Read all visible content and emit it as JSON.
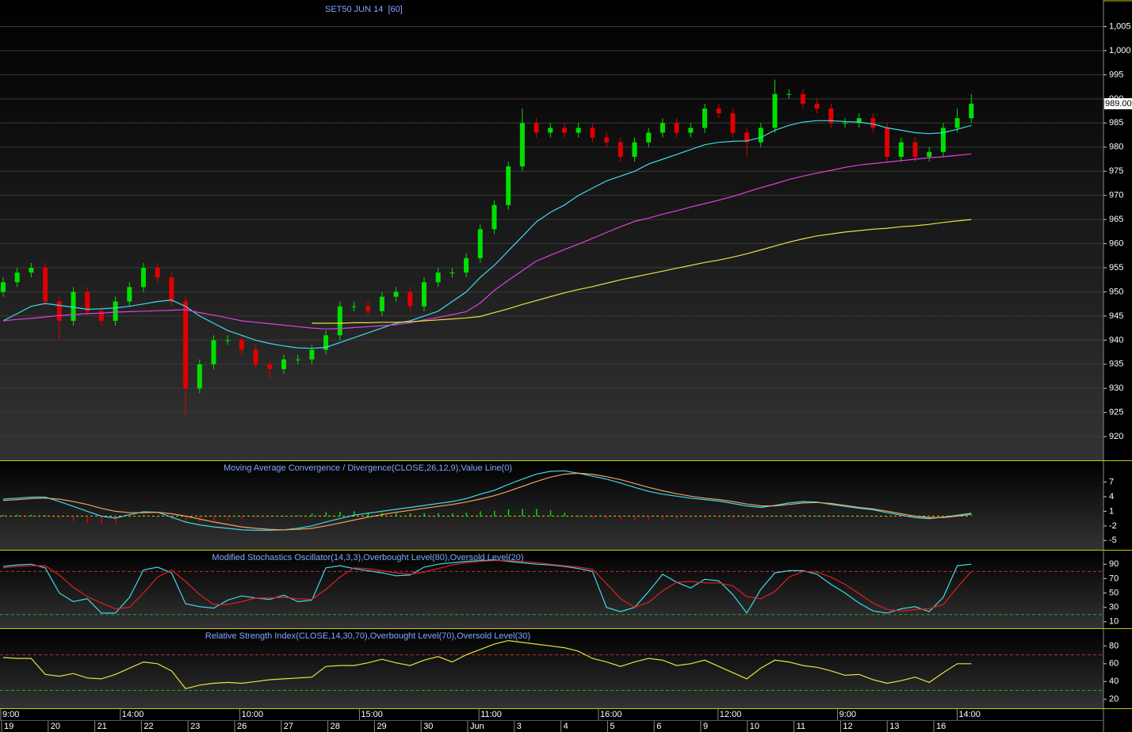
{
  "chart_data": [
    {
      "type": "candlestick",
      "title": "SET50 JUN 14  [60]",
      "ylim": [
        915.1,
        1010.5
      ],
      "yticks": [
        920,
        925,
        930,
        935,
        940,
        945,
        950,
        955,
        960,
        965,
        970,
        975,
        980,
        985,
        990,
        995,
        {
          "value": 1000,
          "label": "1,000"
        },
        {
          "value": 1005,
          "label": "1,005"
        }
      ],
      "last_price": {
        "value": 989,
        "label": "989.00"
      },
      "up_color": "#00e000",
      "down_color": "#e00000",
      "grid": true,
      "open": [
        950,
        952,
        954,
        955,
        948,
        944,
        950,
        946,
        944,
        948,
        951,
        955,
        953,
        948,
        930,
        935,
        940,
        940,
        938,
        935,
        934,
        936,
        936,
        938,
        941,
        947,
        947,
        946,
        949,
        950,
        947,
        952,
        954,
        954,
        957,
        963,
        968,
        976,
        985,
        983,
        984,
        983,
        984,
        982,
        981,
        978,
        981,
        983,
        985,
        983,
        984,
        988,
        987,
        983,
        981,
        984,
        991,
        991,
        989,
        988,
        985,
        985,
        986,
        984,
        978,
        981,
        978,
        979,
        984,
        986
      ],
      "high": [
        953,
        955,
        956,
        956,
        949,
        951,
        951,
        947,
        949,
        952,
        956,
        956,
        954,
        949,
        936,
        941,
        941,
        941,
        939,
        936,
        937,
        937,
        939,
        942,
        948,
        948,
        948,
        950,
        951,
        951,
        953,
        955,
        955,
        958,
        964,
        969,
        977,
        988,
        986,
        985,
        985,
        985,
        985,
        983,
        982,
        982,
        984,
        986,
        986,
        985,
        989,
        989,
        988,
        984,
        985,
        994,
        992,
        992,
        990,
        989,
        986,
        987,
        987,
        985,
        982,
        982,
        980,
        985,
        988,
        991
      ],
      "low": [
        949,
        951,
        953,
        947,
        940,
        943,
        945,
        943,
        943,
        947,
        950,
        952,
        947,
        924,
        929,
        934,
        939,
        937,
        934,
        932,
        933,
        935,
        935,
        937,
        940,
        946,
        945,
        945,
        948,
        946,
        946,
        951,
        953,
        953,
        956,
        962,
        967,
        975,
        982,
        982,
        982,
        982,
        981,
        980,
        977,
        977,
        980,
        982,
        982,
        982,
        983,
        986,
        982,
        978,
        980,
        983,
        990,
        988,
        987,
        984,
        984,
        984,
        983,
        977,
        977,
        977,
        977,
        978,
        983,
        985
      ],
      "close": [
        952,
        954,
        955,
        948,
        944,
        950,
        946,
        944,
        948,
        951,
        955,
        953,
        948,
        930,
        935,
        940,
        940,
        938,
        935,
        934,
        936,
        936,
        938,
        941,
        947,
        947,
        946,
        949,
        950,
        947,
        952,
        954,
        954,
        957,
        963,
        968,
        976,
        985,
        983,
        984,
        983,
        984,
        982,
        981,
        978,
        981,
        983,
        985,
        983,
        984,
        988,
        987,
        983,
        981,
        984,
        991,
        991,
        989,
        988,
        985,
        985,
        986,
        984,
        978,
        981,
        978,
        979,
        984,
        986,
        989
      ],
      "series": [
        {
          "color": "#40d8e8",
          "values": [
            944,
            945.5,
            947,
            947.6,
            947.2,
            946.8,
            946.4,
            946.5,
            946.7,
            947,
            947.5,
            948,
            948.3,
            947,
            945,
            943.5,
            942,
            941,
            940,
            939.3,
            938.8,
            938.4,
            938.3,
            938.5,
            939.5,
            940.5,
            941.5,
            942.5,
            943.5,
            944,
            945,
            946,
            948,
            950,
            953,
            955.5,
            958.5,
            961.5,
            964.5,
            966.5,
            968,
            970,
            971.5,
            973,
            974,
            975,
            976.5,
            977.5,
            978.5,
            979.5,
            980.5,
            981,
            981.2,
            981.3,
            982,
            983.5,
            984.5,
            985.2,
            985.5,
            985.5,
            985.3,
            985.2,
            984.8,
            984,
            983.5,
            983,
            982.8,
            983,
            983.7,
            984.5
          ]
        },
        {
          "color": "#e040e0",
          "values": [
            944,
            944.3,
            944.5,
            944.8,
            945.1,
            945.3,
            945.5,
            945.6,
            945.8,
            945.9,
            946,
            946.1,
            946.2,
            946.3,
            945.7,
            945.2,
            944.6,
            944,
            943.7,
            943.4,
            943.1,
            942.8,
            942.5,
            942.3,
            942.4,
            942.6,
            942.8,
            943,
            943.2,
            943.6,
            944.2,
            944.7,
            945.3,
            945.9,
            947.7,
            950.3,
            952.4,
            954.4,
            956.4,
            957.6,
            958.8,
            959.9,
            961.1,
            962.3,
            963.5,
            964.6,
            965.3,
            966.1,
            966.8,
            967.6,
            968.3,
            969,
            969.8,
            970.7,
            971.6,
            972.4,
            973.3,
            974,
            974.6,
            975.2,
            975.8,
            976.3,
            976.6,
            976.9,
            977.2,
            977.5,
            977.8,
            978,
            978.3,
            978.6
          ]
        },
        {
          "color": "#e8e040",
          "values": [
            null,
            null,
            null,
            null,
            null,
            null,
            null,
            null,
            null,
            null,
            null,
            null,
            null,
            null,
            null,
            null,
            null,
            null,
            null,
            null,
            null,
            null,
            943.5,
            943.5,
            943.5,
            943.6,
            943.6,
            943.7,
            943.7,
            943.8,
            944,
            944.2,
            944.4,
            944.6,
            944.9,
            945.7,
            946.5,
            947.4,
            948.2,
            949,
            949.8,
            950.5,
            951.1,
            951.8,
            952.5,
            953.1,
            953.7,
            954.3,
            954.9,
            955.5,
            956.1,
            956.6,
            957.2,
            957.9,
            958.7,
            959.5,
            960.3,
            961,
            961.6,
            962,
            962.4,
            962.7,
            963,
            963.2,
            963.5,
            963.7,
            964,
            964.4,
            964.7,
            965
          ]
        }
      ]
    },
    {
      "type": "macd",
      "title": "Moving Average Convergence / Divergence(CLOSE,26,12,9),Value Line(0)",
      "ylim": [
        -6.9,
        11.3
      ],
      "yticks": [
        7,
        4,
        1,
        -2,
        -5
      ],
      "up_color": "#00e000",
      "down_color": "#e00000",
      "series": [
        {
          "color": "#40d8e8",
          "values": [
            3.5,
            3.7,
            3.9,
            3.9,
            3,
            2,
            1,
            0,
            -0.4,
            0.3,
            0.9,
            0.8,
            -0.2,
            -1.2,
            -1.8,
            -2.2,
            -2.5,
            -2.8,
            -2.9,
            -2.9,
            -2.8,
            -2.5,
            -2,
            -1.2,
            -0.5,
            0.2,
            0.6,
            1,
            1.4,
            1.8,
            2.2,
            2.6,
            3,
            3.6,
            4.5,
            5.3,
            6.5,
            7.6,
            8.6,
            9.2,
            9.3,
            8.8,
            8.2,
            7.6,
            6.8,
            5.9,
            5.1,
            4.5,
            4.1,
            3.7,
            3.4,
            3.1,
            2.6,
            2.1,
            1.8,
            2.2,
            2.7,
            3,
            2.9,
            2.4,
            2,
            1.6,
            1.3,
            0.7,
            0.2,
            -0.3,
            -0.5,
            -0.2,
            0.2,
            0.6
          ]
        },
        {
          "color": "#f0a060",
          "values": [
            3.2,
            3.4,
            3.6,
            3.7,
            3.5,
            3,
            2.4,
            1.6,
            1,
            0.7,
            0.7,
            0.8,
            0.5,
            0,
            -0.6,
            -1.2,
            -1.7,
            -2.2,
            -2.5,
            -2.7,
            -2.8,
            -2.7,
            -2.5,
            -2,
            -1.4,
            -0.8,
            -0.2,
            0.3,
            0.8,
            1.2,
            1.6,
            2,
            2.4,
            2.9,
            3.5,
            4.2,
            5.1,
            6.1,
            7.1,
            8,
            8.6,
            8.8,
            8.6,
            8.1,
            7.5,
            6.7,
            5.9,
            5.2,
            4.6,
            4.1,
            3.7,
            3.4,
            3,
            2.5,
            2.1,
            2.1,
            2.4,
            2.7,
            2.8,
            2.6,
            2.2,
            1.8,
            1.5,
            1,
            0.5,
            0,
            -0.3,
            -0.3,
            0,
            0.4
          ]
        }
      ],
      "histogram": [
        0.3,
        0.3,
        0.3,
        0.2,
        -0.5,
        -1,
        -1.4,
        -1.6,
        -1.4,
        -0.4,
        0.2,
        0,
        -0.7,
        -1.2,
        -1.2,
        -1,
        -0.8,
        -0.6,
        -0.4,
        -0.2,
        0,
        0.2,
        0.5,
        0.8,
        0.9,
        1,
        0.8,
        0.7,
        0.6,
        0.6,
        0.6,
        0.6,
        0.6,
        0.7,
        1,
        1.1,
        1.4,
        1.5,
        1.5,
        1.2,
        0.7,
        0,
        -0.4,
        -0.5,
        -0.7,
        -0.8,
        -0.8,
        -0.7,
        -0.5,
        -0.4,
        -0.3,
        -0.3,
        -0.4,
        -0.4,
        -0.3,
        0.1,
        0.3,
        0.3,
        0.1,
        -0.2,
        -0.2,
        -0.2,
        -0.2,
        -0.3,
        -0.3,
        -0.3,
        -0.2,
        0.1,
        0.2,
        0.2
      ],
      "value_line": 0
    },
    {
      "type": "stochastic",
      "title": "Modified Stochastics Oscillator(14,3,3),Overbought Level(80),Oversold Level(20)",
      "ylim": [
        1,
        109
      ],
      "yticks": [
        90,
        70,
        50,
        30,
        10
      ],
      "levels": [
        {
          "value": 80,
          "color": "#c03030"
        },
        {
          "value": 20,
          "color": "#30a030"
        }
      ],
      "series": [
        {
          "color": "#40d8e8",
          "values": [
            87,
            89,
            90,
            85,
            50,
            38,
            42,
            22,
            22,
            44,
            82,
            86,
            78,
            35,
            31,
            29,
            40,
            46,
            43,
            41,
            47,
            38,
            40,
            85,
            88,
            84,
            81,
            78,
            74,
            75,
            86,
            90,
            92,
            94,
            95,
            96,
            94,
            92,
            90,
            89,
            87,
            84,
            80,
            30,
            24,
            30,
            52,
            76,
            65,
            57,
            69,
            67,
            48,
            22,
            55,
            78,
            81,
            81,
            76,
            62,
            50,
            36,
            25,
            22,
            28,
            31,
            24,
            44,
            88,
            90
          ]
        },
        {
          "color": "#e02020",
          "values": [
            85,
            87,
            88,
            88,
            75,
            58,
            45,
            36,
            28,
            30,
            50,
            72,
            82,
            66,
            48,
            34,
            34,
            38,
            43,
            43,
            44,
            42,
            41,
            55,
            72,
            85,
            84,
            81,
            78,
            76,
            79,
            84,
            89,
            92,
            94,
            95,
            95,
            94,
            92,
            90,
            88,
            86,
            83,
            63,
            42,
            30,
            37,
            53,
            65,
            66,
            64,
            64,
            60,
            45,
            42,
            52,
            72,
            80,
            79,
            72,
            62,
            49,
            36,
            27,
            25,
            27,
            28,
            34,
            58,
            80
          ]
        }
      ]
    },
    {
      "type": "rsi",
      "title": "Relative Strength Index(CLOSE,14,30,70),Overbought Level(70),Oversold Level(30)",
      "ylim": [
        10,
        99
      ],
      "yticks": [
        80,
        60,
        40,
        20
      ],
      "levels": [
        {
          "value": 70,
          "color": "#c03030"
        },
        {
          "value": 30,
          "color": "#30a030"
        }
      ],
      "series": [
        {
          "color": "#e8e040",
          "values": [
            67,
            66,
            66,
            48,
            46,
            49,
            44,
            43,
            48,
            55,
            62,
            60,
            52,
            32,
            36,
            38,
            39,
            38,
            40,
            42,
            43,
            44,
            45,
            57,
            58,
            58,
            61,
            65,
            61,
            58,
            64,
            68,
            62,
            70,
            76,
            82,
            86,
            84,
            82,
            80,
            78,
            74,
            66,
            62,
            57,
            62,
            66,
            64,
            58,
            60,
            64,
            57,
            50,
            43,
            55,
            64,
            62,
            58,
            56,
            52,
            47,
            48,
            42,
            38,
            41,
            45,
            39,
            50,
            60,
            60
          ]
        }
      ]
    }
  ],
  "x_axis": {
    "time_labels": [
      "9:00",
      "14:00",
      "10:00",
      "15:00",
      "11:00",
      "16:00",
      "12:00",
      "9:00",
      "14:00"
    ],
    "date_labels": [
      "19",
      "20",
      "21",
      "22",
      "23",
      "26",
      "27",
      "28",
      "29",
      "30",
      "Jun",
      "3",
      "4",
      "5",
      "6",
      "9",
      "10",
      "11",
      "12",
      "13",
      "16"
    ]
  }
}
